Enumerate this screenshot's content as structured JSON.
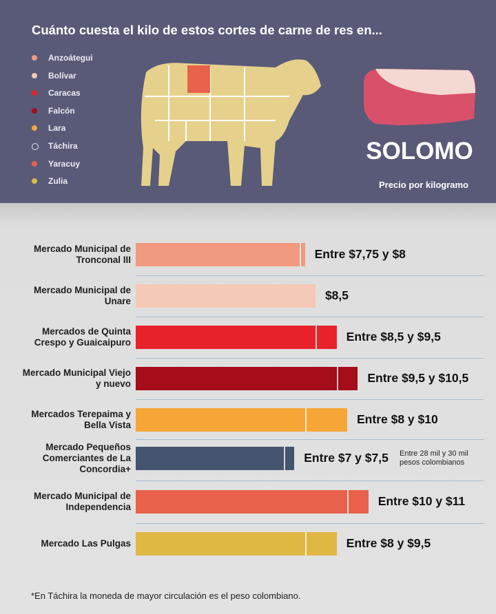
{
  "chart_data": {
    "type": "range-bar",
    "title": "Cuánto cuesta el kilo de estos cortes de carne de res en...",
    "cut": "SOLOMO",
    "subtitle": "Precio por kilogramo",
    "regions": [
      "Anzoátegui",
      "Bolívar",
      "Caracas",
      "Falcón",
      "Lara",
      "Táchira",
      "Yaracuy",
      "Zulia"
    ],
    "colors": [
      "#f19a80",
      "#f6c8b6",
      "#e8222b",
      "#a40d19",
      "#f6a636",
      "#46556f",
      "#e8624b",
      "#dfb743"
    ],
    "categories": [
      "Mercado Municipal de Tronconal III",
      "Mercado Municipal de Unare",
      "Mercados de Quinta Crespo y Guaicaipuro",
      "Mercado Municipal Viejo y nuevo",
      "Mercados Terepaima y Bella Vista",
      "Mercado Pequeños Comerciantes de La Concordia+",
      "Mercado Municipal de Independencia",
      "Mercado Las Pulgas"
    ],
    "min": [
      7.75,
      null,
      8.5,
      9.5,
      8,
      7,
      10,
      8
    ],
    "max": [
      8,
      8.5,
      9.5,
      10.5,
      10,
      7.5,
      11,
      9.5
    ],
    "value_labels": [
      "Entre $7,75 y $8",
      "$8,5",
      "Entre $8,5 y $9,5",
      "Entre $9,5 y $10,5",
      "Entre $8 y $10",
      "Entre $7 y $7,5",
      "Entre $10 y $11",
      "Entre $8 y $9,5"
    ],
    "annotation": "Entre 28 mil y 30 mil pesos colombianos",
    "footnote": "*En Táchira la moneda de mayor circulación es el peso colombiano."
  }
}
